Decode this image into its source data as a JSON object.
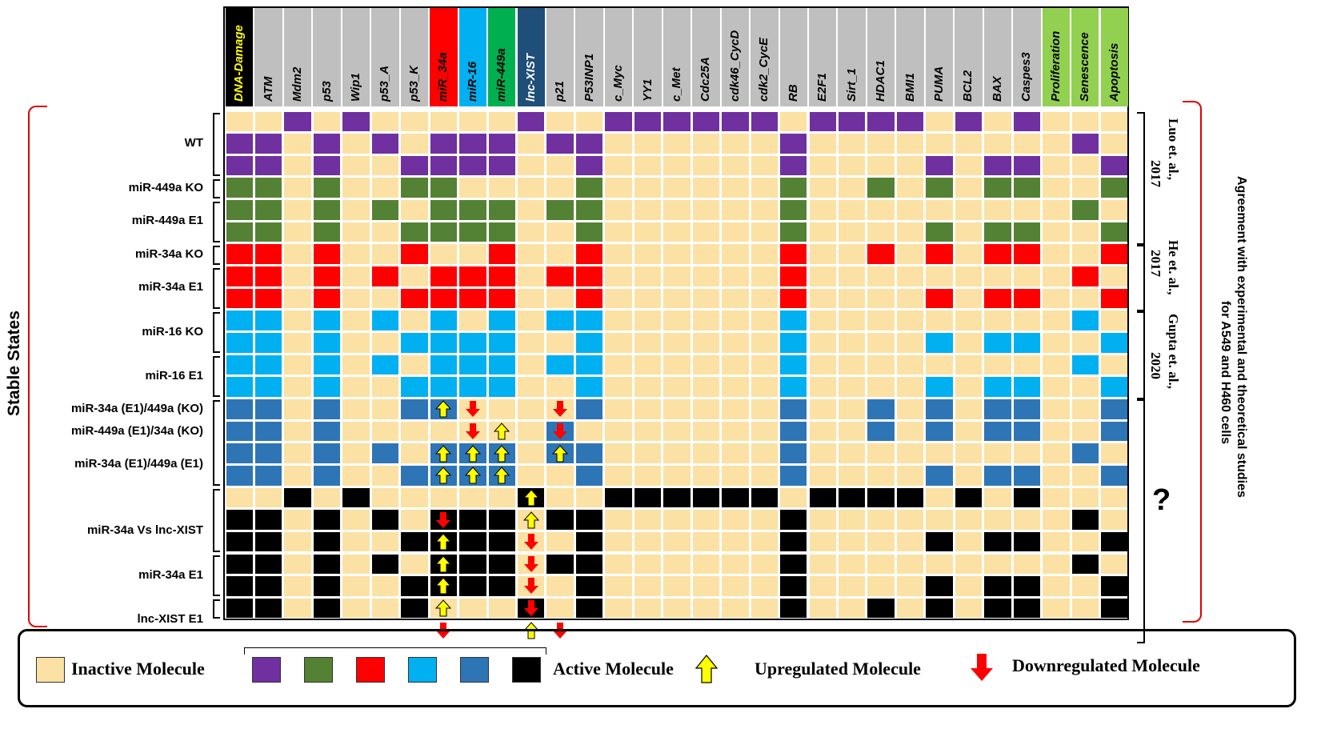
{
  "columns": [
    {
      "label": "DNA-Damage",
      "header_bg": "#000000",
      "header_fg": "#ffff00"
    },
    {
      "label": "ATM",
      "header_bg": "#bfbfbf",
      "header_fg": "#000000"
    },
    {
      "label": "Mdm2",
      "header_bg": "#bfbfbf",
      "header_fg": "#000000"
    },
    {
      "label": "p53",
      "header_bg": "#bfbfbf",
      "header_fg": "#000000"
    },
    {
      "label": "Wip1",
      "header_bg": "#bfbfbf",
      "header_fg": "#000000"
    },
    {
      "label": "p53_A",
      "header_bg": "#bfbfbf",
      "header_fg": "#000000"
    },
    {
      "label": "p53_K",
      "header_bg": "#bfbfbf",
      "header_fg": "#000000"
    },
    {
      "label": "miR_34a",
      "header_bg": "#ff0000",
      "header_fg": "#000000"
    },
    {
      "label": "miR-16",
      "header_bg": "#00b0f0",
      "header_fg": "#000000"
    },
    {
      "label": "miR-449a",
      "header_bg": "#00b050",
      "header_fg": "#000000"
    },
    {
      "label": "lnc-XIST",
      "header_bg": "#1f4e79",
      "header_fg": "#ffffff"
    },
    {
      "label": "p21",
      "header_bg": "#bfbfbf",
      "header_fg": "#000000"
    },
    {
      "label": "P53INP1",
      "header_bg": "#bfbfbf",
      "header_fg": "#000000"
    },
    {
      "label": "c_Myc",
      "header_bg": "#bfbfbf",
      "header_fg": "#000000"
    },
    {
      "label": "YY1",
      "header_bg": "#bfbfbf",
      "header_fg": "#000000"
    },
    {
      "label": "c_Met",
      "header_bg": "#bfbfbf",
      "header_fg": "#000000"
    },
    {
      "label": "Cdc25A",
      "header_bg": "#bfbfbf",
      "header_fg": "#000000"
    },
    {
      "label": "cdk46_CycD",
      "header_bg": "#bfbfbf",
      "header_fg": "#000000"
    },
    {
      "label": "cdk2_CycE",
      "header_bg": "#bfbfbf",
      "header_fg": "#000000"
    },
    {
      "label": "RB",
      "header_bg": "#bfbfbf",
      "header_fg": "#000000"
    },
    {
      "label": "E2F1",
      "header_bg": "#bfbfbf",
      "header_fg": "#000000"
    },
    {
      "label": "Sirt_1",
      "header_bg": "#bfbfbf",
      "header_fg": "#000000"
    },
    {
      "label": "HDAC1",
      "header_bg": "#bfbfbf",
      "header_fg": "#000000"
    },
    {
      "label": "BMI1",
      "header_bg": "#bfbfbf",
      "header_fg": "#000000"
    },
    {
      "label": "PUMA",
      "header_bg": "#bfbfbf",
      "header_fg": "#000000"
    },
    {
      "label": "BCL2",
      "header_bg": "#bfbfbf",
      "header_fg": "#000000"
    },
    {
      "label": "BAX",
      "header_bg": "#bfbfbf",
      "header_fg": "#000000"
    },
    {
      "label": "Caspes3",
      "header_bg": "#bfbfbf",
      "header_fg": "#000000"
    },
    {
      "label": "Proliferation",
      "header_bg": "#92d050",
      "header_fg": "#000000"
    },
    {
      "label": "Senescence",
      "header_bg": "#92d050",
      "header_fg": "#000000"
    },
    {
      "label": "Apoptosis",
      "header_bg": "#92d050",
      "header_fg": "#000000"
    }
  ],
  "colors": {
    "inactive": "#fbe1a3",
    "P": "#7030a0",
    "G": "#548235",
    "R": "#ff0000",
    "C": "#00b0f0",
    "B": "#2e75b6",
    "K": "#000000",
    "up": "#ffff00",
    "down": "#ff0000"
  },
  "rows": [
    "..P.P.....P..PPPPPP.PPPP.P.P..",
    "PP.P.P.PPP.PP......P.........P.",
    "PP.P..PPPP..P......P....P.PP..P",
    "GG.G..GG....G......G..G.G.GG..G",
    "GG.G.G.GGG.GG......G.........G.",
    "GG.G..GGGG..G......G....G.GG..G",
    "RR.R..R..R..R......R..R.R.RR..R",
    "RR.R.R.RRR.RR......R.........R.",
    "RR.R..RRRR..R......R....R.RR..R",
    "CC.C.C.C.C.CC......C.........C.",
    "CC.C..CCCC..C......C....C.CC..C",
    "CC.C.C.CCC.CC......C.........C.",
    "CC.C..CCCC..C......C....C.CC..C",
    "BB.B..BB....B......B..B.B.BB..B",
    "BB.B.......B.......B..B.B.BB..B",
    "BB.B.B.BBB.BB......B.........B.",
    "BB.B..BBBB..B......B....B.BB..B",
    "..K.K.....K..KKKKKK.KKKK.K.K..",
    "KK.K.K.KKK.KK......K.........K.",
    "KK.K..KKKK..K......K....K.KK..K",
    "KK.K.K.KKK.KK......K.........K.",
    "KK.K..KKKK..K......K....K.KK..K",
    "KK.K..K...K.K......K..K.K.KK..K"
  ],
  "arrows": [
    {
      "row": 13,
      "col": 7,
      "dir": "up"
    },
    {
      "row": 13,
      "col": 8,
      "dir": "down"
    },
    {
      "row": 13,
      "col": 11,
      "dir": "down"
    },
    {
      "row": 14,
      "col": 8,
      "dir": "down"
    },
    {
      "row": 14,
      "col": 9,
      "dir": "up"
    },
    {
      "row": 14,
      "col": 11,
      "dir": "down"
    },
    {
      "row": 15,
      "col": 7,
      "dir": "up"
    },
    {
      "row": 15,
      "col": 8,
      "dir": "up"
    },
    {
      "row": 15,
      "col": 9,
      "dir": "up"
    },
    {
      "row": 15,
      "col": 11,
      "dir": "up"
    },
    {
      "row": 16,
      "col": 7,
      "dir": "up"
    },
    {
      "row": 16,
      "col": 8,
      "dir": "up"
    },
    {
      "row": 16,
      "col": 9,
      "dir": "up"
    },
    {
      "row": 17,
      "col": 10,
      "dir": "up"
    },
    {
      "row": 18,
      "col": 7,
      "dir": "down"
    },
    {
      "row": 18,
      "col": 10,
      "dir": "up"
    },
    {
      "row": 19,
      "col": 7,
      "dir": "up"
    },
    {
      "row": 19,
      "col": 10,
      "dir": "down"
    },
    {
      "row": 20,
      "col": 7,
      "dir": "up"
    },
    {
      "row": 20,
      "col": 10,
      "dir": "down"
    },
    {
      "row": 21,
      "col": 7,
      "dir": "up"
    },
    {
      "row": 21,
      "col": 10,
      "dir": "down"
    },
    {
      "row": 22,
      "col": 7,
      "dir": "up"
    },
    {
      "row": 22,
      "col": 10,
      "dir": "down"
    },
    {
      "row": 23,
      "col": 7,
      "dir": "down"
    },
    {
      "row": 23,
      "col": 10,
      "dir": "up"
    },
    {
      "row": 23,
      "col": 11,
      "dir": "down"
    }
  ],
  "row_labels": [
    {
      "text": "WT",
      "row": 1
    },
    {
      "text": "miR-449a KO",
      "row": 3
    },
    {
      "text": "miR-449a E1",
      "row": 4.5
    },
    {
      "text": "miR-34a KO",
      "row": 6
    },
    {
      "text": "miR-34a E1",
      "row": 7.5
    },
    {
      "text": "miR-16 KO",
      "row": 9.5
    },
    {
      "text": "miR-16 E1",
      "row": 11.5
    },
    {
      "text": "miR-34a (E1)/449a (KO)",
      "row": 13
    },
    {
      "text": "miR-449a (E1)/34a (KO)",
      "row": 14
    },
    {
      "text": "miR-34a (E1)/449a (E1)",
      "row": 15.5
    },
    {
      "text": "miR-34a Vs lnc-XIST",
      "row": 18.5
    },
    {
      "text": "miR-34a E1",
      "row": 20.5
    },
    {
      "text": "lnc-XIST E1",
      "row": 22.5
    }
  ],
  "y_axis_label": "Stable States",
  "references": [
    {
      "text": "Luo et. al.,",
      "top_row": 0,
      "bottom_row": 5
    },
    {
      "text": "2017",
      "top_row": 0,
      "bottom_row": 5
    },
    {
      "text": "He et. al.,",
      "top_row": 6,
      "bottom_row": 8
    },
    {
      "text": "2017",
      "top_row": 6,
      "bottom_row": 8
    },
    {
      "text": "Gupta et. al.,",
      "top_row": 9,
      "bottom_row": 12
    },
    {
      "text": "2020",
      "top_row": 9,
      "bottom_row": 12
    }
  ],
  "unknown_mark": "?",
  "right_label_line1": "Agreement with experimental and theoretical studies",
  "right_label_line2": "for A549 and H460 cells",
  "legend": {
    "inactive_label": "Inactive Molecule",
    "active_label": "Active Molecule",
    "up_label": "Upregulated  Molecule",
    "down_label": "Downregulated  Molecule",
    "active_swatches": [
      "P",
      "G",
      "R",
      "C",
      "B",
      "K"
    ]
  }
}
